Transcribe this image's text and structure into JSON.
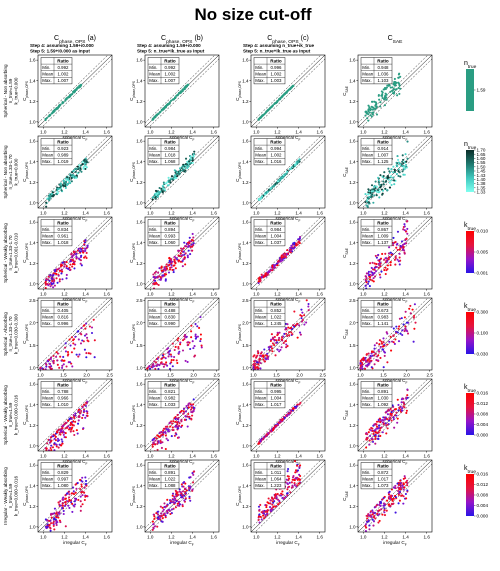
{
  "title": "No size cut-off",
  "columns": [
    {
      "main": "C",
      "sub": "phase, OPS",
      "tag": "(a)",
      "step4": "Step 4: assuming 1.59+i0.000",
      "step5": "Step 5: 1.59+i0.000 as input"
    },
    {
      "main": "C",
      "sub": "phase, OPS",
      "tag": "(b)",
      "step4": "Step 4: assuming 1.59+i0.000",
      "step5": "Step 5: n_true+ik_true as input"
    },
    {
      "main": "C",
      "sub": "phase, OPS",
      "tag": "(c)",
      "step4": "Step 4: assuming n_true+ik_true",
      "step5": "Step 5: n_true+ik_true as input"
    },
    {
      "main": "C",
      "sub": "SAE",
      "tag": "",
      "step4": "",
      "step5": ""
    }
  ],
  "rows": [
    {
      "label1": "Spherical - Non absorbing",
      "label2": "n_true=1.59",
      "label3": "k_true=0.000",
      "xlabel": "spherical C",
      "xsub": "F"
    },
    {
      "label1": "Spherical - Non absorbing",
      "label2": "n_true=1.33-1.70",
      "label3": "k_true=0.000",
      "xlabel": "spherical C",
      "xsub": "F"
    },
    {
      "label1": "Spherical - Weakly absorbing",
      "label2": "n_true=1.33-1.70",
      "label3": "k_true=0.001-0.010",
      "xlabel": "spherical C",
      "xsub": "F"
    },
    {
      "label1": "Spherical - Absorbing",
      "label2": "n_true=1.33-1.70",
      "label3": "k_true=0.030-0.300",
      "xlabel": "spherical C",
      "xsub": "F"
    },
    {
      "label1": "Spherical - Weakly absorbing",
      "label2": "n_true=1.59",
      "label3": "k_true=0.000-0.016",
      "xlabel": "spherical C",
      "xsub": "F"
    },
    {
      "label1": "Irregular - Weakly absorbing",
      "label2": "n_true=1.59",
      "label3": "k_true=0.000-0.016",
      "xlabel": "irregular C",
      "xsub": "F"
    }
  ],
  "ylabels": {
    "ops_main": "C",
    "ops_sub": "phase,OPS",
    "sae_main": "C",
    "sae_sub": "SAE"
  },
  "table_labels": {
    "header": "Ratio",
    "min": "Min.",
    "mean": "Mean",
    "max": "Max."
  },
  "colorbars": [
    {
      "title": "n",
      "title_sub": "true",
      "type": "single",
      "color": "#2a9d82",
      "ticks": [
        "1.59"
      ]
    },
    {
      "title": "n",
      "title_sub": "true",
      "type": "n",
      "ticks": [
        "1.70",
        "1.65",
        "1.60",
        "1.55",
        "1.50",
        "1.45",
        "1.43",
        "1.40",
        "1.38",
        "1.35",
        "1.33"
      ]
    },
    {
      "title": "k",
      "title_sub": "true",
      "type": "k",
      "ticks": [
        "0.010",
        "0.005",
        "0.001"
      ]
    },
    {
      "title": "k",
      "title_sub": "true",
      "type": "k",
      "ticks": [
        "0.300",
        "0.100",
        "0.030"
      ]
    },
    {
      "title": "k",
      "title_sub": "true",
      "type": "k",
      "ticks": [
        "0.016",
        "0.012",
        "0.008",
        "0.004",
        "0.000"
      ]
    },
    {
      "title": "k",
      "title_sub": "true",
      "type": "k",
      "ticks": [
        "0.016",
        "0.012",
        "0.008",
        "0.004",
        "0.000"
      ]
    }
  ],
  "chart_data": {
    "type": "scatter",
    "reference_lines": "1:1 line (solid) with dashed +/- bounds",
    "panels": [
      {
        "row": 0,
        "col": 0,
        "xlim": [
          0.95,
          1.65
        ],
        "ylim": [
          0.95,
          1.65
        ],
        "xticks": [
          "1.0",
          "1.2",
          "1.4",
          "1.6"
        ],
        "yticks": [
          "1.0",
          "1.2",
          "1.4",
          "1.6"
        ],
        "stats": {
          "min": "0.992",
          "mean": "1.002",
          "max": "1.007"
        }
      },
      {
        "row": 0,
        "col": 1,
        "xlim": [
          0.95,
          1.65
        ],
        "ylim": [
          0.95,
          1.65
        ],
        "xticks": [
          "1.0",
          "1.2",
          "1.4",
          "1.6"
        ],
        "yticks": [
          "1.0",
          "1.2",
          "1.4",
          "1.6"
        ],
        "stats": {
          "min": "0.992",
          "mean": "1.002",
          "max": "1.007"
        }
      },
      {
        "row": 0,
        "col": 2,
        "xlim": [
          0.95,
          1.65
        ],
        "ylim": [
          0.95,
          1.65
        ],
        "xticks": [
          "1.0",
          "1.2",
          "1.4",
          "1.6"
        ],
        "yticks": [
          "1.0",
          "1.2",
          "1.4",
          "1.6"
        ],
        "stats": {
          "min": "0.996",
          "mean": "1.002",
          "max": "1.003"
        }
      },
      {
        "row": 0,
        "col": 3,
        "xlim": [
          0.95,
          1.65
        ],
        "ylim": [
          0.95,
          1.65
        ],
        "xticks": [
          "1.0",
          "1.2",
          "1.4",
          "1.6"
        ],
        "yticks": [
          "1.0",
          "1.2",
          "1.4",
          "1.6"
        ],
        "stats": {
          "min": "0.948",
          "mean": "1.036",
          "max": "1.103"
        }
      },
      {
        "row": 1,
        "col": 0,
        "xlim": [
          0.95,
          1.65
        ],
        "ylim": [
          0.95,
          1.65
        ],
        "xticks": [
          "1.0",
          "1.2",
          "1.4",
          "1.6"
        ],
        "yticks": [
          "1.0",
          "1.2",
          "1.4",
          "1.6"
        ],
        "stats": {
          "min": "0.923",
          "mean": "0.989",
          "max": "1.019"
        }
      },
      {
        "row": 1,
        "col": 1,
        "xlim": [
          0.95,
          1.65
        ],
        "ylim": [
          0.95,
          1.65
        ],
        "xticks": [
          "1.0",
          "1.2",
          "1.4",
          "1.6"
        ],
        "yticks": [
          "1.0",
          "1.2",
          "1.4",
          "1.6"
        ],
        "stats": {
          "min": "0.984",
          "mean": "1.018",
          "max": "1.068"
        }
      },
      {
        "row": 1,
        "col": 2,
        "xlim": [
          0.95,
          1.65
        ],
        "ylim": [
          0.95,
          1.65
        ],
        "xticks": [
          "1.0",
          "1.2",
          "1.4",
          "1.6"
        ],
        "yticks": [
          "1.0",
          "1.2",
          "1.4",
          "1.6"
        ],
        "stats": {
          "min": "0.994",
          "mean": "1.002",
          "max": "1.016"
        }
      },
      {
        "row": 1,
        "col": 3,
        "xlim": [
          0.95,
          1.65
        ],
        "ylim": [
          0.95,
          1.65
        ],
        "xticks": [
          "1.0",
          "1.2",
          "1.4",
          "1.6"
        ],
        "yticks": [
          "1.0",
          "1.2",
          "1.4",
          "1.6"
        ],
        "stats": {
          "min": "0.914",
          "mean": "1.007",
          "max": "1.125"
        }
      },
      {
        "row": 2,
        "col": 0,
        "xlim": [
          0.95,
          1.65
        ],
        "ylim": [
          0.95,
          1.65
        ],
        "xticks": [
          "1.0",
          "1.2",
          "1.4",
          "1.6"
        ],
        "yticks": [
          "1.0",
          "1.2",
          "1.4",
          "1.6"
        ],
        "stats": {
          "min": "0.834",
          "mean": "0.961",
          "max": "1.018"
        }
      },
      {
        "row": 2,
        "col": 1,
        "xlim": [
          0.95,
          1.65
        ],
        "ylim": [
          0.95,
          1.65
        ],
        "xticks": [
          "1.0",
          "1.2",
          "1.4",
          "1.6"
        ],
        "yticks": [
          "1.0",
          "1.2",
          "1.4",
          "1.6"
        ],
        "stats": {
          "min": "0.894",
          "mean": "0.993",
          "max": "1.060"
        }
      },
      {
        "row": 2,
        "col": 2,
        "xlim": [
          0.95,
          1.65
        ],
        "ylim": [
          0.95,
          1.65
        ],
        "xticks": [
          "1.0",
          "1.2",
          "1.4",
          "1.6"
        ],
        "yticks": [
          "1.0",
          "1.2",
          "1.4",
          "1.6"
        ],
        "stats": {
          "min": "0.984",
          "mean": "1.004",
          "max": "1.037"
        }
      },
      {
        "row": 2,
        "col": 3,
        "xlim": [
          0.95,
          1.65
        ],
        "ylim": [
          0.95,
          1.65
        ],
        "xticks": [
          "1.0",
          "1.2",
          "1.4",
          "1.6"
        ],
        "yticks": [
          "1.0",
          "1.2",
          "1.4",
          "1.6"
        ],
        "stats": {
          "min": "0.867",
          "mean": "1.009",
          "max": "1.137"
        }
      },
      {
        "row": 3,
        "col": 0,
        "xlim": [
          0.95,
          2.55
        ],
        "ylim": [
          0.95,
          2.55
        ],
        "xticks": [
          "1.0",
          "1.5",
          "2.0",
          "2.5"
        ],
        "yticks": [
          "1.0",
          "1.5",
          "2.0",
          "2.5"
        ],
        "stats": {
          "min": "0.405",
          "mean": "0.816",
          "max": "0.996"
        }
      },
      {
        "row": 3,
        "col": 1,
        "xlim": [
          0.95,
          2.55
        ],
        "ylim": [
          0.95,
          2.55
        ],
        "xticks": [
          "1.0",
          "1.5",
          "2.0",
          "2.5"
        ],
        "yticks": [
          "1.0",
          "1.5",
          "2.0",
          "2.5"
        ],
        "stats": {
          "min": "0.488",
          "mean": "0.830",
          "max": "0.990"
        }
      },
      {
        "row": 3,
        "col": 2,
        "xlim": [
          0.95,
          2.55
        ],
        "ylim": [
          0.95,
          2.55
        ],
        "xticks": [
          "1.0",
          "1.5",
          "2.0",
          "2.5"
        ],
        "yticks": [
          "1.0",
          "1.5",
          "2.0",
          "2.5"
        ],
        "stats": {
          "min": "0.852",
          "mean": "1.022",
          "max": "1.245"
        }
      },
      {
        "row": 3,
        "col": 3,
        "xlim": [
          0.95,
          2.55
        ],
        "ylim": [
          0.95,
          2.55
        ],
        "xticks": [
          "1.0",
          "1.5",
          "2.0",
          "2.5"
        ],
        "yticks": [
          "1.0",
          "1.5",
          "2.0",
          "2.5"
        ],
        "stats": {
          "min": "0.673",
          "mean": "0.983",
          "max": "1.141"
        }
      },
      {
        "row": 4,
        "col": 0,
        "xlim": [
          0.95,
          1.65
        ],
        "ylim": [
          0.95,
          1.65
        ],
        "xticks": [
          "1.0",
          "1.2",
          "1.4",
          "1.6"
        ],
        "yticks": [
          "1.0",
          "1.2",
          "1.4",
          "1.6"
        ],
        "stats": {
          "min": "0.788",
          "mean": "0.966",
          "max": "1.010"
        }
      },
      {
        "row": 4,
        "col": 1,
        "xlim": [
          0.95,
          1.65
        ],
        "ylim": [
          0.95,
          1.65
        ],
        "xticks": [
          "1.0",
          "1.2",
          "1.4",
          "1.6"
        ],
        "yticks": [
          "1.0",
          "1.2",
          "1.4",
          "1.6"
        ],
        "stats": {
          "min": "0.821",
          "mean": "0.982",
          "max": "1.033"
        }
      },
      {
        "row": 4,
        "col": 2,
        "xlim": [
          0.95,
          1.65
        ],
        "ylim": [
          0.95,
          1.65
        ],
        "xticks": [
          "1.0",
          "1.2",
          "1.4",
          "1.6"
        ],
        "yticks": [
          "1.0",
          "1.2",
          "1.4",
          "1.6"
        ],
        "stats": {
          "min": "0.995",
          "mean": "1.004",
          "max": "1.017"
        }
      },
      {
        "row": 4,
        "col": 3,
        "xlim": [
          0.95,
          1.65
        ],
        "ylim": [
          0.95,
          1.65
        ],
        "xticks": [
          "1.0",
          "1.2",
          "1.4",
          "1.6"
        ],
        "yticks": [
          "1.0",
          "1.2",
          "1.4",
          "1.6"
        ],
        "stats": {
          "min": "0.891",
          "mean": "1.030",
          "max": "1.092"
        }
      },
      {
        "row": 5,
        "col": 0,
        "xlim": [
          0.95,
          1.65
        ],
        "ylim": [
          0.95,
          1.65
        ],
        "xticks": [
          "1.0",
          "1.2",
          "1.4",
          "1.6"
        ],
        "yticks": [
          "1.0",
          "1.2",
          "1.4",
          "1.6"
        ],
        "stats": {
          "min": "0.829",
          "mean": "0.997",
          "max": "1.080"
        }
      },
      {
        "row": 5,
        "col": 1,
        "xlim": [
          0.95,
          1.65
        ],
        "ylim": [
          0.95,
          1.65
        ],
        "xticks": [
          "1.0",
          "1.2",
          "1.4",
          "1.6"
        ],
        "yticks": [
          "1.0",
          "1.2",
          "1.4",
          "1.6"
        ],
        "stats": {
          "min": "0.891",
          "mean": "1.022",
          "max": "1.088"
        }
      },
      {
        "row": 5,
        "col": 2,
        "xlim": [
          0.95,
          1.65
        ],
        "ylim": [
          0.95,
          1.65
        ],
        "xticks": [
          "1.0",
          "1.2",
          "1.4",
          "1.6"
        ],
        "yticks": [
          "1.0",
          "1.2",
          "1.4",
          "1.6"
        ],
        "stats": {
          "min": "1.011",
          "mean": "1.064",
          "max": "1.223"
        }
      },
      {
        "row": 5,
        "col": 3,
        "xlim": [
          0.95,
          1.65
        ],
        "ylim": [
          0.95,
          1.65
        ],
        "xticks": [
          "1.0",
          "1.2",
          "1.4",
          "1.6"
        ],
        "yticks": [
          "1.0",
          "1.2",
          "1.4",
          "1.6"
        ],
        "stats": {
          "min": "0.872",
          "mean": "1.017",
          "max": "1.073"
        }
      }
    ]
  }
}
